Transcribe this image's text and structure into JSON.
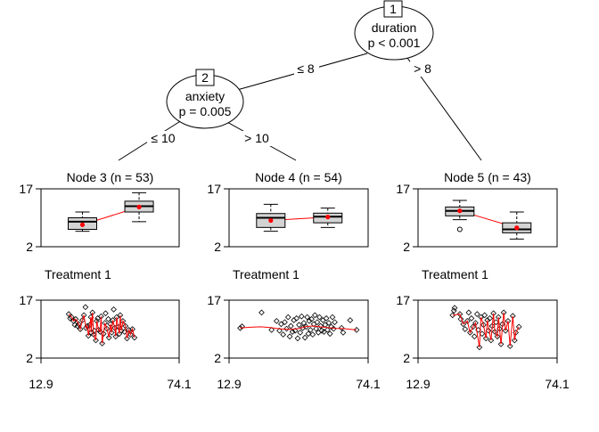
{
  "colors": {
    "box_fill": "#d3d3d3",
    "mean_marker": "#ff0000",
    "trend_line": "#ff0000",
    "ink": "#000000",
    "background": "#ffffff"
  },
  "tree": {
    "inner_nodes": [
      {
        "id": "1",
        "variable": "duration",
        "pvalue": "p < 0.001"
      },
      {
        "id": "2",
        "variable": "anxiety",
        "pvalue": "p = 0.005"
      }
    ],
    "edge_labels": {
      "n1_left": "≤ 8",
      "n1_right": "> 8",
      "n2_left": "≤ 10",
      "n2_right": "> 10"
    }
  },
  "chart_data": [
    {
      "type": "box",
      "node_title": "Node 3 (n = 53)",
      "y_ticks": [
        "17",
        "2"
      ],
      "ylim": [
        2,
        17
      ],
      "series": [
        {
          "box": {
            "whisker_low": 6.0,
            "q1": 6.5,
            "median": 8.5,
            "q3": 9.5,
            "whisker_high": 11.0
          },
          "mean": 7.7,
          "outliers": []
        },
        {
          "box": {
            "whisker_low": 8.5,
            "q1": 11.0,
            "median": 12.5,
            "q3": 13.8,
            "whisker_high": 16.0
          },
          "mean": 12.3,
          "outliers": []
        }
      ],
      "panel_label": "Treatment 1",
      "scatter": {
        "type": "scatter",
        "y_ticks": [
          "17",
          "2"
        ],
        "x_ticks": [
          "12.9",
          "74.1"
        ],
        "xlim": [
          12.9,
          74.1
        ],
        "ylim": [
          2,
          17
        ],
        "points": [
          [
            25.2,
            13.4
          ],
          [
            25.8,
            12.3
          ],
          [
            26.5,
            12.6
          ],
          [
            27.3,
            11.6
          ],
          [
            27.9,
            10.6
          ],
          [
            28.3,
            12.1
          ],
          [
            29.1,
            10.3
          ],
          [
            29.6,
            10.8
          ],
          [
            30.3,
            9.5
          ],
          [
            31.2,
            11.8
          ],
          [
            31.9,
            13.1
          ],
          [
            32.6,
            15.2
          ],
          [
            32.8,
            9.8
          ],
          [
            33.4,
            10.3
          ],
          [
            33.9,
            7.8
          ],
          [
            34.5,
            10.6
          ],
          [
            35.0,
            12.6
          ],
          [
            35.1,
            8.6
          ],
          [
            35.7,
            13.8
          ],
          [
            36.2,
            8.1
          ],
          [
            36.5,
            9.1
          ],
          [
            37.2,
            6.6
          ],
          [
            37.6,
            11.6
          ],
          [
            38.0,
            12.3
          ],
          [
            38.4,
            9.3
          ],
          [
            39.1,
            8.8
          ],
          [
            39.5,
            12.8
          ],
          [
            40.0,
            5.8
          ],
          [
            40.6,
            8.3
          ],
          [
            41.2,
            11.1
          ],
          [
            41.5,
            13.6
          ],
          [
            42.1,
            9.6
          ],
          [
            42.7,
            12.1
          ],
          [
            43.0,
            7.3
          ],
          [
            43.6,
            10.8
          ],
          [
            44.2,
            8.6
          ],
          [
            44.7,
            11.8
          ],
          [
            45.1,
            14.6
          ],
          [
            45.6,
            9.8
          ],
          [
            46.0,
            7.6
          ],
          [
            46.4,
            12.6
          ],
          [
            47.1,
            10.1
          ],
          [
            47.6,
            8.3
          ],
          [
            48.0,
            13.1
          ],
          [
            48.5,
            9.1
          ],
          [
            49.2,
            11.6
          ],
          [
            49.9,
            8.8
          ],
          [
            50.3,
            10.3
          ],
          [
            51.0,
            7.1
          ],
          [
            51.8,
            9.3
          ],
          [
            52.6,
            8.1
          ],
          [
            53.4,
            9.5
          ],
          [
            54.3,
            7.3
          ]
        ],
        "trend": [
          [
            25.2,
            13.4
          ],
          [
            26.5,
            12.6
          ],
          [
            27.3,
            11.6
          ],
          [
            28.3,
            12.1
          ],
          [
            29.6,
            10.8
          ],
          [
            30.3,
            9.5
          ],
          [
            31.2,
            11.8
          ],
          [
            31.9,
            13.1
          ],
          [
            32.8,
            9.8
          ],
          [
            33.4,
            10.3
          ],
          [
            33.9,
            7.8
          ],
          [
            35.0,
            12.6
          ],
          [
            35.1,
            8.6
          ],
          [
            35.7,
            13.8
          ],
          [
            36.2,
            8.1
          ],
          [
            37.2,
            6.6
          ],
          [
            37.6,
            11.6
          ],
          [
            38.4,
            9.3
          ],
          [
            39.1,
            8.8
          ],
          [
            39.5,
            12.8
          ],
          [
            40.0,
            5.8
          ],
          [
            41.2,
            11.1
          ],
          [
            42.1,
            9.6
          ],
          [
            43.0,
            7.3
          ],
          [
            43.6,
            10.8
          ],
          [
            44.2,
            8.6
          ],
          [
            44.7,
            11.8
          ],
          [
            45.6,
            9.8
          ],
          [
            46.0,
            7.6
          ],
          [
            46.4,
            12.6
          ],
          [
            47.6,
            8.3
          ],
          [
            48.0,
            13.1
          ],
          [
            48.5,
            9.1
          ],
          [
            49.2,
            11.6
          ],
          [
            50.3,
            10.3
          ],
          [
            51.0,
            7.1
          ],
          [
            51.8,
            9.3
          ],
          [
            52.6,
            8.1
          ],
          [
            53.4,
            9.5
          ],
          [
            54.3,
            7.3
          ]
        ]
      }
    },
    {
      "type": "box",
      "node_title": "Node 4 (n = 54)",
      "y_ticks": [
        "17",
        "2"
      ],
      "ylim": [
        2,
        17
      ],
      "series": [
        {
          "box": {
            "whisker_low": 6.0,
            "q1": 7.0,
            "median": 9.5,
            "q3": 10.6,
            "whisker_high": 13.0
          },
          "mean": 8.8,
          "outliers": []
        },
        {
          "box": {
            "whisker_low": 7.0,
            "q1": 8.2,
            "median": 9.8,
            "q3": 10.7,
            "whisker_high": 12.0
          },
          "mean": 9.7,
          "outliers": []
        }
      ],
      "panel_label": "Treatment 1",
      "scatter": {
        "type": "scatter",
        "y_ticks": [
          "17",
          "2"
        ],
        "x_ticks": [
          "12.9",
          "74.1"
        ],
        "xlim": [
          12.9,
          74.1
        ],
        "ylim": [
          2,
          17
        ],
        "points": [
          [
            17.8,
            9.8
          ],
          [
            18.6,
            10.2
          ],
          [
            27.2,
            13.8
          ],
          [
            31.6,
            9.3
          ],
          [
            33.8,
            11.6
          ],
          [
            35.1,
            9.1
          ],
          [
            35.8,
            10.8
          ],
          [
            36.7,
            8.1
          ],
          [
            37.4,
            11.3
          ],
          [
            38.2,
            9.6
          ],
          [
            38.9,
            12.6
          ],
          [
            39.6,
            7.6
          ],
          [
            40.1,
            10.3
          ],
          [
            40.8,
            8.8
          ],
          [
            41.4,
            11.8
          ],
          [
            42.0,
            9.1
          ],
          [
            42.6,
            12.3
          ],
          [
            43.1,
            7.1
          ],
          [
            43.7,
            10.6
          ],
          [
            44.2,
            8.6
          ],
          [
            44.8,
            12.8
          ],
          [
            45.3,
            9.8
          ],
          [
            45.8,
            11.1
          ],
          [
            46.3,
            7.3
          ],
          [
            46.8,
            10.1
          ],
          [
            47.3,
            12.6
          ],
          [
            47.8,
            8.3
          ],
          [
            48.2,
            11.6
          ],
          [
            48.7,
            9.3
          ],
          [
            49.2,
            12.1
          ],
          [
            49.7,
            8.1
          ],
          [
            50.2,
            10.8
          ],
          [
            50.7,
            13.1
          ],
          [
            51.2,
            9.6
          ],
          [
            51.7,
            11.3
          ],
          [
            52.2,
            8.6
          ],
          [
            52.7,
            12.6
          ],
          [
            53.2,
            10.3
          ],
          [
            53.7,
            9.1
          ],
          [
            54.2,
            11.8
          ],
          [
            54.7,
            8.8
          ],
          [
            55.2,
            10.6
          ],
          [
            55.7,
            12.3
          ],
          [
            56.2,
            9.3
          ],
          [
            56.8,
            11.1
          ],
          [
            57.3,
            8.3
          ],
          [
            57.9,
            10.1
          ],
          [
            58.4,
            12.6
          ],
          [
            58.9,
            9.6
          ],
          [
            59.4,
            11.3
          ],
          [
            62.4,
            9.8
          ],
          [
            63.1,
            8.6
          ],
          [
            66.2,
            11.8
          ],
          [
            69.0,
            9.3
          ]
        ],
        "trend": [
          [
            17.8,
            9.8
          ],
          [
            22.0,
            10.0
          ],
          [
            27.0,
            10.1
          ],
          [
            31.0,
            9.9
          ],
          [
            35.0,
            9.6
          ],
          [
            40.0,
            9.4
          ],
          [
            44.0,
            9.7
          ],
          [
            47.0,
            10.2
          ],
          [
            50.0,
            10.3
          ],
          [
            53.0,
            10.1
          ],
          [
            56.0,
            9.9
          ],
          [
            60.0,
            9.7
          ],
          [
            64.0,
            9.6
          ],
          [
            69.0,
            9.3
          ]
        ]
      }
    },
    {
      "type": "box",
      "node_title": "Node 5 (n = 43)",
      "y_ticks": [
        "17",
        "2"
      ],
      "ylim": [
        2,
        17
      ],
      "series": [
        {
          "box": {
            "whisker_low": 9.0,
            "q1": 10.0,
            "median": 11.3,
            "q3": 12.3,
            "whisker_high": 14.0
          },
          "mean": 11.3,
          "outliers": [
            6.5
          ]
        },
        {
          "box": {
            "whisker_low": 4.0,
            "q1": 5.6,
            "median": 6.5,
            "q3": 8.2,
            "whisker_high": 11.0
          },
          "mean": 6.9,
          "outliers": []
        }
      ],
      "panel_label": "Treatment 1",
      "scatter": {
        "type": "scatter",
        "y_ticks": [
          "17",
          "2"
        ],
        "x_ticks": [
          "12.9",
          "74.1"
        ],
        "xlim": [
          12.9,
          74.1
        ],
        "ylim": [
          2,
          17
        ],
        "points": [
          [
            28.1,
            13.1
          ],
          [
            28.7,
            14.3
          ],
          [
            29.0,
            15.0
          ],
          [
            31.3,
            13.4
          ],
          [
            31.7,
            12.1
          ],
          [
            32.8,
            10.8
          ],
          [
            33.6,
            9.5
          ],
          [
            34.6,
            11.6
          ],
          [
            35.2,
            13.8
          ],
          [
            35.8,
            8.6
          ],
          [
            36.4,
            12.3
          ],
          [
            37.1,
            10.1
          ],
          [
            37.7,
            7.6
          ],
          [
            38.2,
            11.1
          ],
          [
            38.9,
            13.4
          ],
          [
            39.4,
            9.3
          ],
          [
            39.9,
            4.8
          ],
          [
            40.6,
            12.6
          ],
          [
            41.1,
            8.3
          ],
          [
            41.7,
            10.6
          ],
          [
            42.2,
            13.1
          ],
          [
            42.8,
            7.1
          ],
          [
            43.4,
            11.8
          ],
          [
            43.9,
            9.1
          ],
          [
            44.5,
            12.3
          ],
          [
            45.0,
            6.6
          ],
          [
            45.5,
            10.3
          ],
          [
            46.1,
            13.6
          ],
          [
            46.7,
            8.8
          ],
          [
            47.2,
            11.3
          ],
          [
            47.8,
            7.6
          ],
          [
            48.3,
            12.6
          ],
          [
            48.8,
            9.6
          ],
          [
            49.4,
            5.6
          ],
          [
            50.0,
            10.8
          ],
          [
            50.6,
            13.8
          ],
          [
            51.4,
            9.1
          ],
          [
            52.5,
            11.6
          ],
          [
            53.4,
            5.1
          ],
          [
            54.6,
            12.9
          ],
          [
            55.4,
            6.6
          ],
          [
            55.9,
            8.6
          ],
          [
            57.3,
            10.1
          ]
        ],
        "trend": [
          [
            28.1,
            13.1
          ],
          [
            31.3,
            13.4
          ],
          [
            32.8,
            10.8
          ],
          [
            34.6,
            11.6
          ],
          [
            35.8,
            8.6
          ],
          [
            37.1,
            10.1
          ],
          [
            38.2,
            11.1
          ],
          [
            39.9,
            4.8
          ],
          [
            40.6,
            12.6
          ],
          [
            41.7,
            10.6
          ],
          [
            42.8,
            7.1
          ],
          [
            43.4,
            11.8
          ],
          [
            45.0,
            6.6
          ],
          [
            46.1,
            13.6
          ],
          [
            46.7,
            8.8
          ],
          [
            47.8,
            7.6
          ],
          [
            48.3,
            12.6
          ],
          [
            49.4,
            5.6
          ],
          [
            50.6,
            13.8
          ],
          [
            51.4,
            9.1
          ],
          [
            52.5,
            11.6
          ],
          [
            53.4,
            5.1
          ],
          [
            54.6,
            12.9
          ],
          [
            55.4,
            6.6
          ],
          [
            55.9,
            8.6
          ],
          [
            57.3,
            10.1
          ]
        ]
      }
    }
  ]
}
